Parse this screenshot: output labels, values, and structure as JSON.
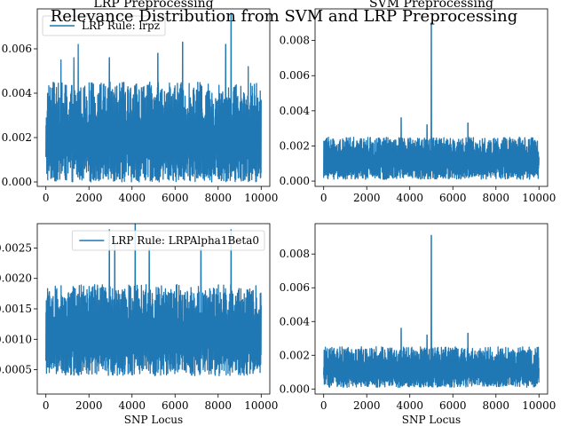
{
  "suptitle": "Relevance Distribution from SVM and LRP Preprocessing",
  "series_color": "#1f77b4",
  "chart_data": [
    {
      "type": "line",
      "title": "LRP Preprocessing",
      "xlabel": "",
      "ylabel": "",
      "xlim": [
        -400,
        10400
      ],
      "ylim": [
        -0.0002,
        0.0078
      ],
      "xticks": [
        0,
        2000,
        4000,
        6000,
        8000,
        10000
      ],
      "xtick_labels": [
        "0",
        "2000",
        "4000",
        "6000",
        "8000",
        "10000"
      ],
      "yticks": [
        0.0,
        0.002,
        0.004,
        0.006
      ],
      "ytick_labels": [
        "0.000",
        "0.002",
        "0.004",
        "0.006"
      ],
      "legend": {
        "label": "LRP Rule: lrpz",
        "placement": "top-left"
      },
      "series": [
        {
          "name": "LRP Rule: lrpz",
          "n_points": 10000,
          "baseline": 0.0,
          "typical_max": 0.0045,
          "peaks": [
            [
              8600,
              0.0076
            ],
            [
              1500,
              0.0062
            ],
            [
              6350,
              0.0063
            ],
            [
              8350,
              0.0062
            ],
            [
              5200,
              0.0058
            ],
            [
              1300,
              0.0056
            ],
            [
              700,
              0.0055
            ],
            [
              2950,
              0.0056
            ],
            [
              9400,
              0.0052
            ]
          ]
        }
      ]
    },
    {
      "type": "line",
      "title": "SVM Preprocessing",
      "xlabel": "",
      "ylabel": "",
      "xlim": [
        -400,
        10400
      ],
      "ylim": [
        -0.0003,
        0.0098
      ],
      "xticks": [
        0,
        2000,
        4000,
        6000,
        8000,
        10000
      ],
      "xtick_labels": [
        "0",
        "2000",
        "4000",
        "6000",
        "8000",
        "10000"
      ],
      "yticks": [
        0.0,
        0.002,
        0.004,
        0.006,
        0.008
      ],
      "ytick_labels": [
        "0.000",
        "0.002",
        "0.004",
        "0.006",
        "0.008"
      ],
      "series": [
        {
          "name": "",
          "n_points": 10000,
          "baseline": 0.0001,
          "typical_max": 0.0025,
          "peaks": [
            [
              5000,
              0.009
            ],
            [
              3600,
              0.0036
            ],
            [
              6700,
              0.0033
            ],
            [
              4800,
              0.0032
            ]
          ]
        }
      ]
    },
    {
      "type": "line",
      "title": "",
      "xlabel": "SNP Locus",
      "ylabel": "",
      "xlim": [
        -400,
        10400
      ],
      "ylim": [
        0.0001,
        0.0029
      ],
      "xticks": [
        0,
        2000,
        4000,
        6000,
        8000,
        10000
      ],
      "xtick_labels": [
        "0",
        "2000",
        "4000",
        "6000",
        "8000",
        "10000"
      ],
      "yticks": [
        0.0005,
        0.001,
        0.0015,
        0.002,
        0.0025
      ],
      "ytick_labels": [
        "0.0005",
        "0.0010",
        "0.0015",
        "0.0020",
        "0.0025"
      ],
      "legend": {
        "label": "LRP Rule: LRPAlpha1Beta0",
        "placement": "top-right"
      },
      "series": [
        {
          "name": "LRP Rule: LRPAlpha1Beta0",
          "n_points": 10000,
          "baseline": 0.0004,
          "typical_max": 0.0019,
          "peaks": [
            [
              4150,
              0.0029
            ],
            [
              2950,
              0.0028
            ],
            [
              8600,
              0.0028
            ],
            [
              4800,
              0.0025
            ],
            [
              3200,
              0.0026
            ],
            [
              7200,
              0.0025
            ]
          ]
        }
      ]
    },
    {
      "type": "line",
      "title": "",
      "xlabel": "SNP Locus",
      "ylabel": "",
      "xlim": [
        -400,
        10400
      ],
      "ylim": [
        -0.0003,
        0.0098
      ],
      "xticks": [
        0,
        2000,
        4000,
        6000,
        8000,
        10000
      ],
      "xtick_labels": [
        "0",
        "2000",
        "4000",
        "6000",
        "8000",
        "10000"
      ],
      "yticks": [
        0.0,
        0.002,
        0.004,
        0.006,
        0.008
      ],
      "ytick_labels": [
        "0.000",
        "0.002",
        "0.004",
        "0.006",
        "0.008"
      ],
      "series": [
        {
          "name": "",
          "n_points": 10000,
          "baseline": 0.0001,
          "typical_max": 0.0025,
          "peaks": [
            [
              5000,
              0.0091
            ],
            [
              3600,
              0.0036
            ],
            [
              6700,
              0.0033
            ],
            [
              4800,
              0.0032
            ]
          ]
        }
      ]
    }
  ]
}
